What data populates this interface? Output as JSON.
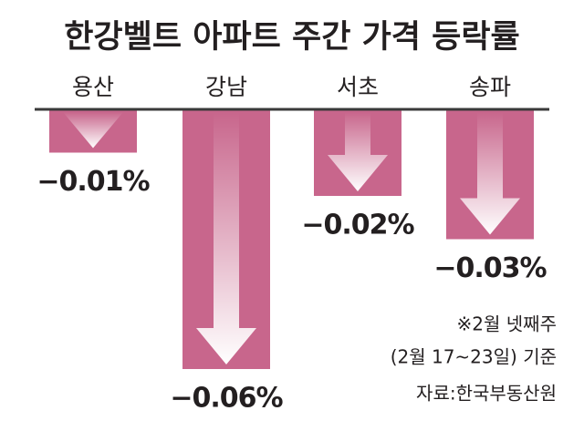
{
  "chart_data": {
    "type": "bar",
    "title": "한강벨트 아파트 주간 가격 등락률",
    "categories": [
      "용산",
      "강남",
      "서초",
      "송파"
    ],
    "values": [
      -0.01,
      -0.06,
      -0.02,
      -0.03
    ],
    "value_labels": [
      "−0.01%",
      "−0.06%",
      "−0.02%",
      "−0.03%"
    ],
    "color": "#c8668c",
    "ylim": [
      -0.06,
      0
    ],
    "notes": [
      "※2월 넷째주",
      "(2월 17~23일) 기준",
      "자료:한국부동산원"
    ]
  }
}
